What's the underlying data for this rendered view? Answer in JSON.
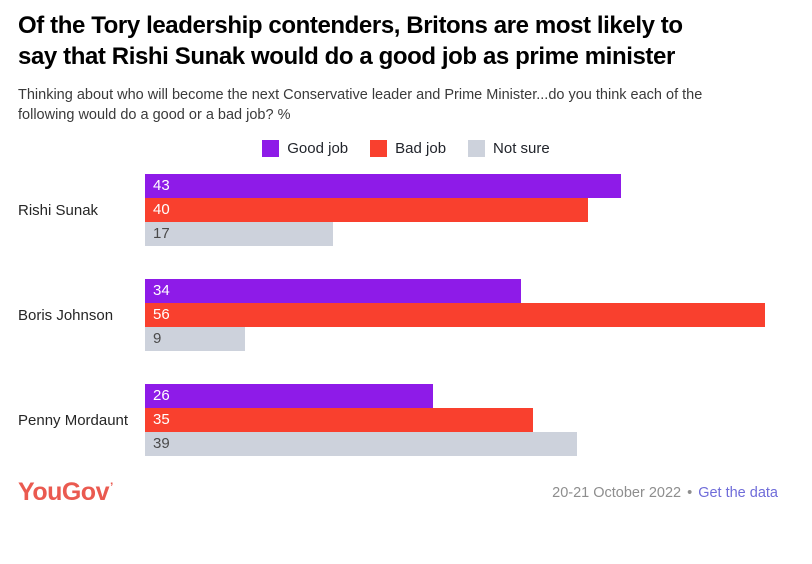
{
  "chart_data": {
    "type": "bar",
    "orientation": "horizontal",
    "title": "Of the Tory leadership contenders, Britons are most likely to say that Rishi Sunak would do a good job as prime minister",
    "subtitle": "Thinking about who will become the next Conservative leader and Prime Minister...do you think each of the following would do a good or a bad job? %",
    "categories": [
      "Rishi Sunak",
      "Boris Johnson",
      "Penny Mordaunt"
    ],
    "series": [
      {
        "name": "Good job",
        "color": "#8e1be8",
        "label_color": "#ffffff",
        "values": [
          43,
          34,
          26
        ]
      },
      {
        "name": "Bad job",
        "color": "#f9402e",
        "label_color": "#ffffff",
        "values": [
          40,
          56,
          35
        ]
      },
      {
        "name": "Not sure",
        "color": "#cdd2dc",
        "label_color": "#4a4a4a",
        "values": [
          17,
          9,
          39
        ]
      }
    ],
    "xlim": [
      0,
      56
    ],
    "grid": false,
    "value_labels": "inside-start",
    "legend_position": "top-center"
  },
  "footer": {
    "logo": "YouGov",
    "logo_mark": "’",
    "logo_color": "#ea5a50",
    "date": "20-21 October 2022",
    "separator": "•",
    "link": "Get the data",
    "link_color": "#6f6cd9"
  }
}
